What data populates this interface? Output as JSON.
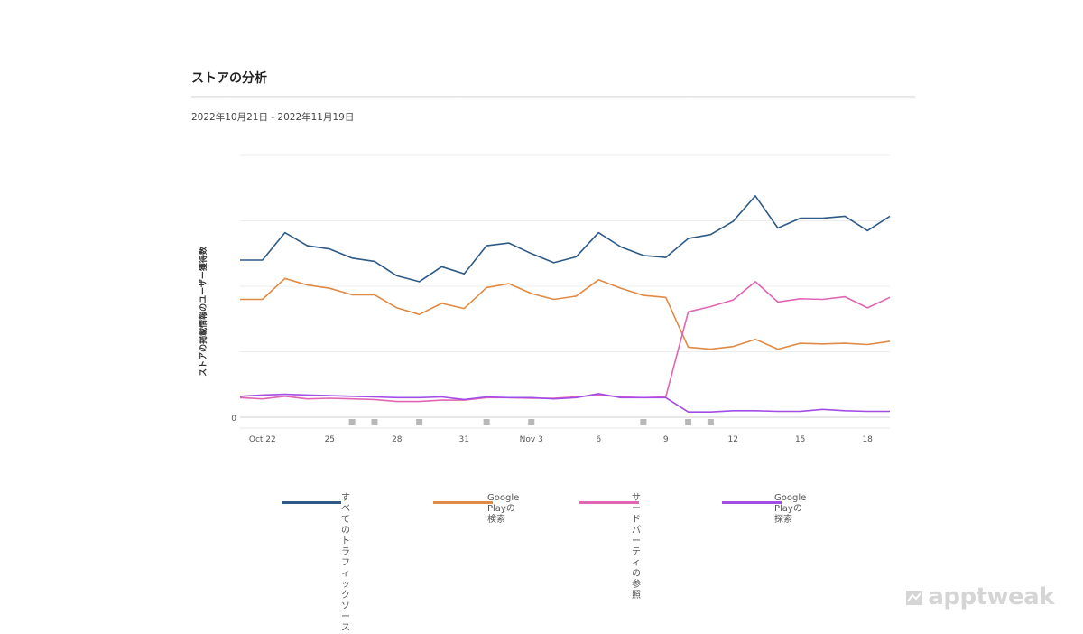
{
  "header": {
    "title": "ストアの分析",
    "date_range": "2022年10月21日 - 2022年11月19日"
  },
  "chart_data": {
    "type": "line",
    "title": "",
    "xlabel": "",
    "ylabel": "ストアの掲載情報のユーザー獲得数",
    "y_tick_labels": [
      "0"
    ],
    "ylim": [
      0,
      400
    ],
    "grid": true,
    "legend_position": "bottom",
    "x": [
      "Oct 21",
      "Oct 22",
      "Oct 23",
      "Oct 24",
      "Oct 25",
      "Oct 26",
      "Oct 27",
      "Oct 28",
      "Oct 29",
      "Oct 30",
      "Oct 31",
      "Nov 1",
      "Nov 2",
      "Nov 3",
      "Nov 4",
      "Nov 5",
      "Nov 6",
      "Nov 7",
      "Nov 8",
      "Nov 9",
      "Nov 10",
      "Nov 11",
      "Nov 12",
      "Nov 13",
      "Nov 14",
      "Nov 15",
      "Nov 16",
      "Nov 17",
      "Nov 18",
      "Nov 19"
    ],
    "tick_labels": [
      "Oct 22",
      "25",
      "28",
      "31",
      "Nov 3",
      "6",
      "9",
      "12",
      "15",
      "18"
    ],
    "tick_indices": [
      1,
      4,
      7,
      10,
      13,
      16,
      19,
      22,
      25,
      28
    ],
    "annotation_markers": [
      5,
      6,
      8,
      11,
      13,
      18,
      20,
      21
    ],
    "series": [
      {
        "name": "すべてのトラフィック\nソース",
        "color": "#2d5a87",
        "values": [
          240,
          240,
          282,
          262,
          257,
          243,
          238,
          216,
          207,
          230,
          219,
          262,
          266,
          250,
          236,
          245,
          282,
          260,
          247,
          244,
          273,
          279,
          299,
          338,
          289,
          304,
          304,
          307,
          285,
          307
        ]
      },
      {
        "name": "Google Playの検索",
        "color": "#e08a45",
        "values": [
          180,
          180,
          212,
          202,
          197,
          187,
          187,
          167,
          157,
          174,
          166,
          198,
          204,
          189,
          180,
          185,
          210,
          197,
          186,
          183,
          107,
          104,
          108,
          119,
          104,
          113,
          112,
          113,
          111,
          116
        ]
      },
      {
        "name": "サードパーティの参照",
        "color": "#e066b3",
        "values": [
          30,
          28,
          32,
          28,
          29,
          28,
          27,
          24,
          24,
          26,
          26,
          30,
          30,
          29,
          29,
          31,
          34,
          31,
          30,
          31,
          161,
          169,
          179,
          207,
          176,
          181,
          180,
          184,
          167,
          183
        ]
      },
      {
        "name": "Google Playの探索",
        "color": "#a24de6",
        "values": [
          32,
          34,
          35,
          34,
          33,
          32,
          31,
          30,
          30,
          31,
          27,
          31,
          30,
          30,
          28,
          30,
          36,
          30,
          30,
          30,
          8,
          8,
          10,
          10,
          9,
          9,
          12,
          10,
          9,
          9
        ]
      }
    ]
  },
  "watermark": "apptweak"
}
